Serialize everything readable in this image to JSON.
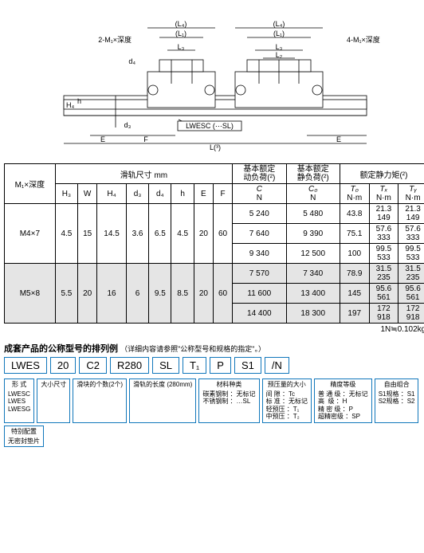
{
  "diagram": {
    "labels": {
      "l4a": "(L₄)",
      "l4b": "(L₄)",
      "l1": "(L₁)",
      "l1b": "(L₁)",
      "l3": "L₃",
      "l3b": "L₃",
      "l2": "L₂",
      "m1l": "2-M₁×深度",
      "m1r": "4-M₁×深度",
      "d4": "d₄",
      "h4": "H₄",
      "h": "h",
      "d3": "d₃",
      "E": "E",
      "F": "F",
      "E2": "E",
      "Lfoot": "L(³)",
      "lwesc": "LWESC (⋯SL)"
    },
    "colors": {
      "line": "#000",
      "hatch": "#666"
    }
  },
  "table": {
    "head": {
      "rail": "滑轨尺寸  mm",
      "C": "基本额定\n动负荷(²)",
      "C0": "基本额定\n静负荷(²)",
      "moment": "额定静力矩(²)",
      "M1": "M₁×深度",
      "H3": "H₃",
      "W": "W",
      "H4": "H₄",
      "d3": "d₃",
      "d4": "d₄",
      "hh": "h",
      "E": "E",
      "F": "F",
      "Cn": "C",
      "C0n": "C₀",
      "T0": "T₀",
      "TX": "Tₓ",
      "TY": "Tᵧ",
      "N": "N",
      "Nm": "N·m"
    },
    "rows": [
      {
        "shade": false,
        "M1": "M4×7",
        "H3": "4.5",
        "W": "15",
        "H4": "14.5",
        "d3": "3.6",
        "d4": "6.5",
        "h": "4.5",
        "E": "20",
        "F": "60",
        "sub": [
          {
            "C": "5 240",
            "C0": "5 480",
            "T0": "43.8",
            "TX": "21.3\n149",
            "TY": "21.3\n149"
          },
          {
            "C": "7 640",
            "C0": "9 390",
            "T0": "75.1",
            "TX": "57.6\n333",
            "TY": "57.6\n333"
          },
          {
            "C": "9 340",
            "C0": "12 500",
            "T0": "100",
            "TX": "99.5\n533",
            "TY": "99.5\n533"
          }
        ]
      },
      {
        "shade": true,
        "M1": "M5×8",
        "H3": "5.5",
        "W": "20",
        "H4": "16",
        "d3": "6",
        "d4": "9.5",
        "h": "8.5",
        "E": "20",
        "F": "60",
        "sub": [
          {
            "C": "7 570",
            "C0": "7 340",
            "T0": "78.9",
            "TX": "31.5\n235",
            "TY": "31.5\n235"
          },
          {
            "C": "11 600",
            "C0": "13 400",
            "T0": "145",
            "TX": "95.6\n561",
            "TY": "95.6\n561"
          },
          {
            "C": "14 400",
            "C0": "18 300",
            "T0": "197",
            "TX": "172\n918",
            "TY": "172\n918"
          }
        ]
      }
    ],
    "footnote": "1N≒0.102kgf"
  },
  "model": {
    "title": "成套产品的公称型号的排列例",
    "hint": "（详细内容请参照\"公称型号和规格的指定\"。）",
    "parts": [
      "LWES",
      "20",
      "C2",
      "R280",
      "SL",
      "T₁",
      "P",
      "S1",
      "/N"
    ],
    "desc": [
      {
        "t": "形 式",
        "b": "LWESC\nLWES\nLWESG"
      },
      {
        "t": "大小尺寸",
        "b": ""
      },
      {
        "t": "滑块的个数(2个)",
        "b": ""
      },
      {
        "t": "滑轨的长度 (280mm)",
        "b": ""
      },
      {
        "t": "材料种类",
        "b": "碳素钢制 ：无标记\n不锈钢制 ：…SL"
      },
      {
        "t": "预压量的大小",
        "b": "间 隙 ：Tc\n标 准 ：无标记\n轻预压 ：T₁\n中预压 ：T₂"
      },
      {
        "t": "精度等级",
        "b": "普 通 级 ：无标记\n高  级 ：H\n精 密 级 ：P\n超精密级 ：SP"
      },
      {
        "t": "自由组合",
        "b": "S1规格 ：S1\nS2规格 ：S2"
      },
      {
        "t": "特别配置",
        "b": "无密封垫片"
      }
    ]
  }
}
